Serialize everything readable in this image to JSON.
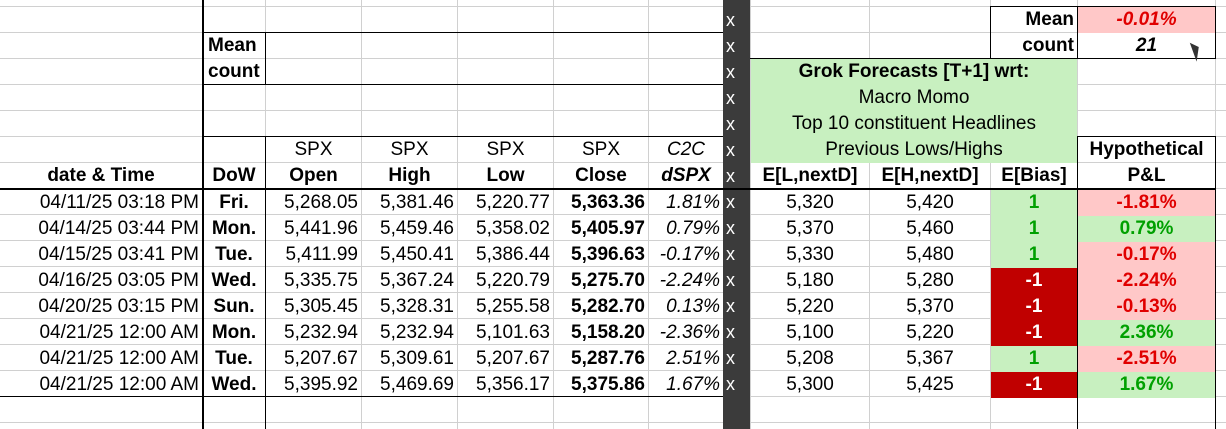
{
  "summary_left": {
    "mean_label": "Mean",
    "count_label": "count"
  },
  "summary_right": {
    "mean_label": "Mean",
    "mean_value": "-0.01%",
    "count_label": "count",
    "count_value": "21"
  },
  "forecast_block": {
    "title": "Grok Forecasts [T+1] wrt:",
    "items": [
      "Macro Momo",
      "Top 10 constituent Headlines",
      "Previous Lows/Highs"
    ]
  },
  "separator_mark": "x",
  "headers_top": {
    "open": "SPX",
    "high": "SPX",
    "low": "SPX",
    "close": "SPX",
    "c2c": "C2C",
    "pl": "Hypothetical"
  },
  "headers": {
    "date": "date & Time",
    "dow": "DoW",
    "open": "Open",
    "high": "High",
    "low": "Low",
    "close": "Close",
    "dspx": "dSPX",
    "el": "E[L,nextD]",
    "eh": "E[H,nextD]",
    "bias": "E[Bias]",
    "pl": "P&L"
  },
  "rows": [
    {
      "date": "04/11/25 03:18 PM",
      "dow": "Fri.",
      "open": "5,268.05",
      "high": "5,381.46",
      "low": "5,220.77",
      "close": "5,363.36",
      "dspx": "1.81%",
      "el": "5,320",
      "eh": "5,420",
      "bias": "1",
      "pl": "-1.81%"
    },
    {
      "date": "04/14/25 03:44 PM",
      "dow": "Mon.",
      "open": "5,441.96",
      "high": "5,459.46",
      "low": "5,358.02",
      "close": "5,405.97",
      "dspx": "0.79%",
      "el": "5,370",
      "eh": "5,460",
      "bias": "1",
      "pl": "0.79%"
    },
    {
      "date": "04/15/25 03:41 PM",
      "dow": "Tue.",
      "open": "5,411.99",
      "high": "5,450.41",
      "low": "5,386.44",
      "close": "5,396.63",
      "dspx": "-0.17%",
      "el": "5,330",
      "eh": "5,480",
      "bias": "1",
      "pl": "-0.17%"
    },
    {
      "date": "04/16/25 03:05 PM",
      "dow": "Wed.",
      "open": "5,335.75",
      "high": "5,367.24",
      "low": "5,220.79",
      "close": "5,275.70",
      "dspx": "-2.24%",
      "el": "5,180",
      "eh": "5,280",
      "bias": "-1",
      "pl": "-2.24%"
    },
    {
      "date": "04/20/25 03:15 PM",
      "dow": "Sun.",
      "open": "5,305.45",
      "high": "5,328.31",
      "low": "5,255.58",
      "close": "5,282.70",
      "dspx": "0.13%",
      "el": "5,220",
      "eh": "5,370",
      "bias": "-1",
      "pl": "-0.13%"
    },
    {
      "date": "04/21/25 12:00 AM",
      "dow": "Mon.",
      "open": "5,232.94",
      "high": "5,232.94",
      "low": "5,101.63",
      "close": "5,158.20",
      "dspx": "-2.36%",
      "el": "5,100",
      "eh": "5,220",
      "bias": "-1",
      "pl": "2.36%"
    },
    {
      "date": "04/21/25 12:00 AM",
      "dow": "Tue.",
      "open": "5,207.67",
      "high": "5,309.61",
      "low": "5,207.67",
      "close": "5,287.76",
      "dspx": "2.51%",
      "el": "5,208",
      "eh": "5,367",
      "bias": "1",
      "pl": "-2.51%"
    },
    {
      "date": "04/21/25 12:00 AM",
      "dow": "Wed.",
      "open": "5,395.92",
      "high": "5,469.69",
      "low": "5,356.17",
      "close": "5,375.86",
      "dspx": "1.67%",
      "el": "5,300",
      "eh": "5,425",
      "bias": "-1",
      "pl": "1.67%"
    }
  ],
  "colors": {
    "bias_positive_bg": "#c8f0c0",
    "bias_negative_bg": "#c00000",
    "pl_positive_bg": "#c8f0c0",
    "pl_negative_bg": "#ffc8c8",
    "forecast_bg": "#c8f0c0",
    "mean_bg": "#ffc8c8",
    "separator": "#3b3b3b"
  }
}
